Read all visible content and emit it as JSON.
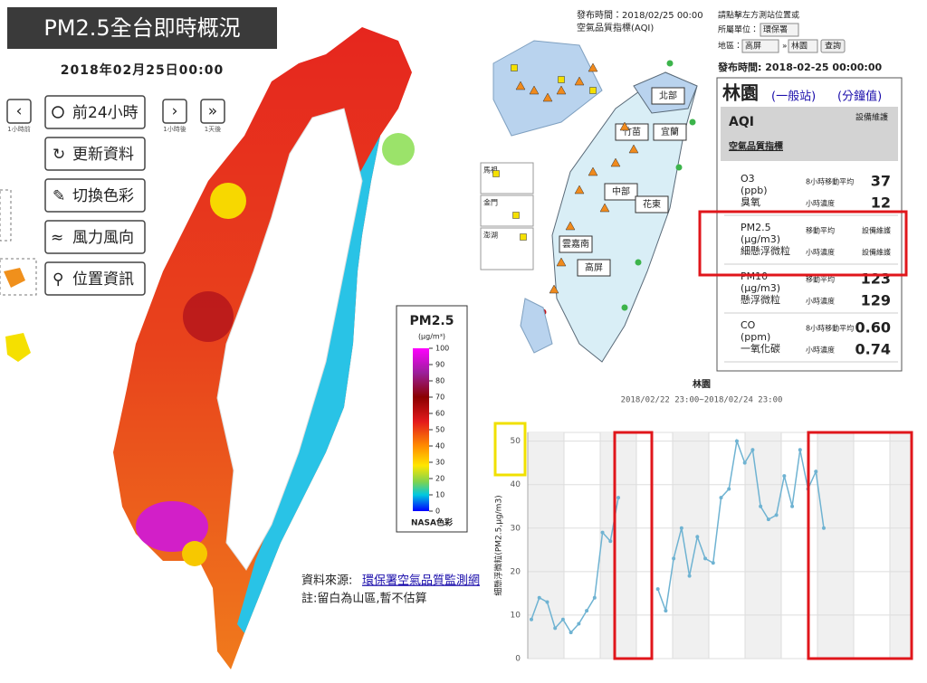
{
  "left_panel": {
    "title": "PM2.5全台即時概況",
    "date": "2018年02月25日00:00",
    "step_labels": [
      "1小時前",
      "1小時後",
      "1天後"
    ],
    "buttons": [
      "前24小時",
      "更新資料",
      "切換色彩",
      "風力風向",
      "位置資訊"
    ],
    "source_label": "資料來源:",
    "source_link": "環保署空氣品質監測網",
    "note": "註:留白為山區,暫不估算"
  },
  "colorbar": {
    "title": "PM2.5",
    "unit": "(μg/m³)",
    "lim": [
      0,
      100
    ],
    "ticks": [
      100,
      90,
      80,
      70,
      60,
      50,
      40,
      30,
      20,
      10,
      0
    ],
    "footer": "NASA色彩"
  },
  "aqi_header": {
    "time": "發布時間：2018/02/25 00:00",
    "subtitle": "空氣品質指標(AQI)",
    "hint": "請點擊左方測站位置或",
    "unit_label": "所屬單位：",
    "unit_value": "環保署",
    "area_label": "地區：",
    "area_value": "高屏",
    "station_value": "林園",
    "query": "查詢"
  },
  "regions": [
    "北部",
    "竹苗",
    "宜蘭",
    "中部",
    "花東",
    "雲嘉南",
    "高屏"
  ],
  "islands": [
    "馬祖",
    "金門",
    "澎湖"
  ],
  "station_panel": {
    "time": "發布時間: 2018-02-25 00:00:00",
    "name": "林園",
    "type": "(一般站)",
    "minute": "(分鐘值)",
    "aqi_label": "AQI",
    "aqi_status": "設備維護",
    "aqi_desc": "空氣品質指標",
    "rows": [
      {
        "pollutant": "O3",
        "unit": "(ppb)",
        "cname": "臭氧",
        "avg_label": "8小時移動平均",
        "avg": "37",
        "hour_label": "小時濃度",
        "hour": "12"
      },
      {
        "pollutant": "PM2.5",
        "unit": "(μg/m3)",
        "cname": "細懸浮微粒",
        "avg_label": "移動平均",
        "avg": "設備維護",
        "hour_label": "小時濃度",
        "hour": "設備維護"
      },
      {
        "pollutant": "PM10",
        "unit": "(μg/m3)",
        "cname": "懸浮微粒",
        "avg_label": "移動平均",
        "avg": "123",
        "hour_label": "小時濃度",
        "hour": "129"
      },
      {
        "pollutant": "CO",
        "unit": "(ppm)",
        "cname": "一氧化碳",
        "avg_label": "8小時移動平均",
        "avg": "0.60",
        "hour_label": "小時濃度",
        "hour": "0.74"
      }
    ]
  },
  "line_chart": {
    "type": "line",
    "title": "林園",
    "subtitle": "2018/02/22 23:00~2018/02/24 23:00",
    "ylabel": "細懸浮微粒(PM2.5,μg/m3)",
    "ylim": [
      0,
      52
    ],
    "yticks": [
      0,
      10,
      20,
      30,
      40,
      50
    ],
    "color": "#6fb3d2",
    "values": [
      9,
      14,
      13,
      7,
      9,
      6,
      8,
      11,
      14,
      29,
      27,
      37,
      null,
      null,
      null,
      null,
      16,
      11,
      23,
      30,
      19,
      28,
      23,
      22,
      37,
      39,
      50,
      45,
      48,
      35,
      32,
      33,
      42,
      35,
      48,
      39,
      43,
      30,
      null,
      null,
      null,
      null,
      null,
      null,
      null,
      null,
      null,
      null,
      null
    ]
  }
}
